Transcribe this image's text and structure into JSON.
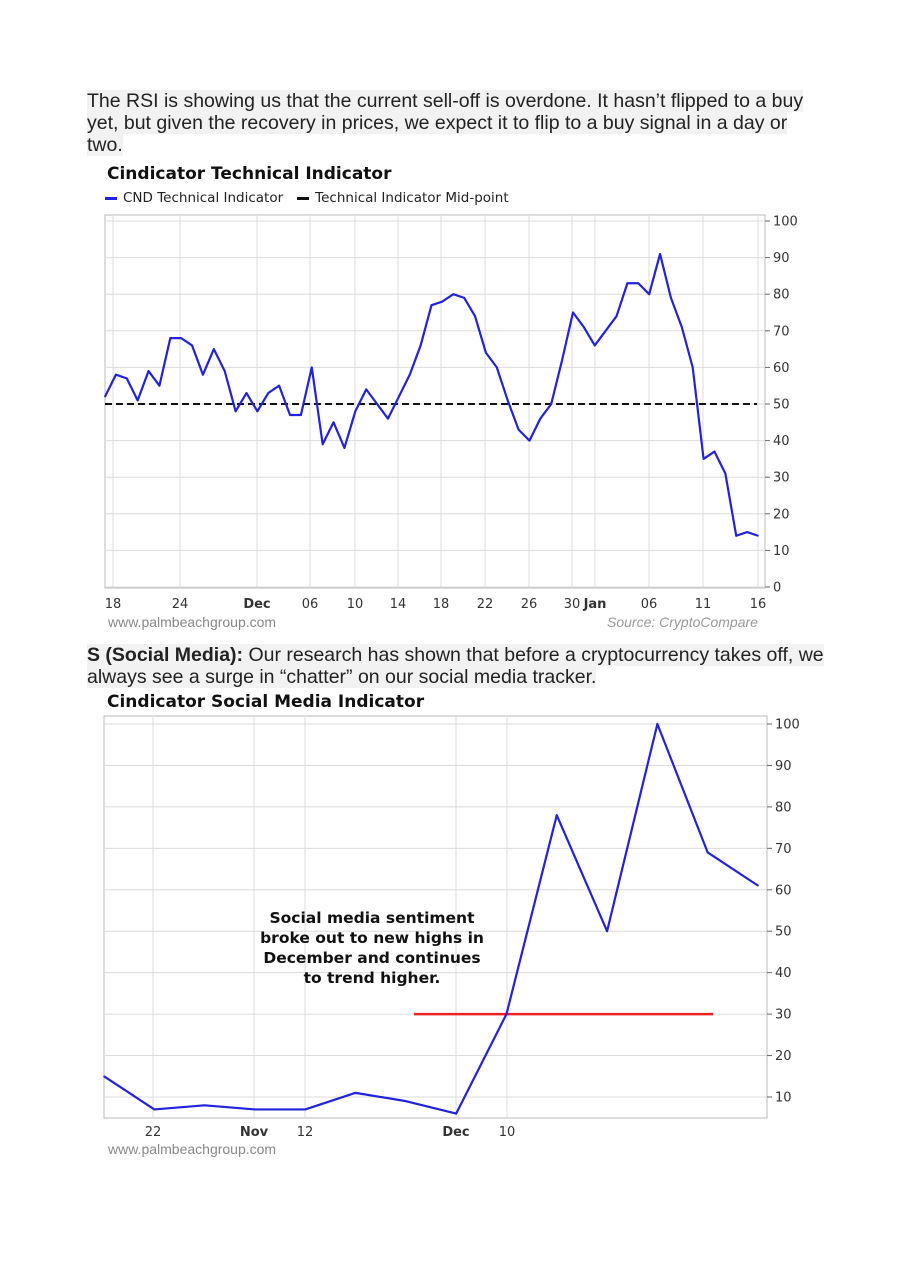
{
  "paragraph1": {
    "text": "The RSI is showing us that the current sell-off is overdone. It hasn’t flipped to a buy yet, but given the recovery in prices, we expect it to flip to a buy signal in a day or two."
  },
  "paragraph2": {
    "bold": "S (Social Media):",
    "text": " Our research has shown that before a cryptocurrency takes off, we always see a surge in “chatter” on our social media tracker."
  },
  "chart_data": [
    {
      "type": "line",
      "title": "Cindicator Technical Indicator",
      "series": [
        {
          "name": "CND Technical Indicator",
          "color": "#2222dd",
          "values": [
            52,
            58,
            57,
            51,
            59,
            55,
            68,
            68,
            66,
            58,
            65,
            59,
            48,
            53,
            48,
            53,
            55,
            47,
            47,
            60,
            39,
            45,
            38,
            48,
            54,
            50,
            46,
            52,
            58,
            66,
            77,
            78,
            80,
            79,
            74,
            64,
            60,
            51,
            43,
            40,
            46,
            50,
            62,
            75,
            71,
            66,
            70,
            74,
            83,
            83,
            80,
            91,
            79,
            71,
            60,
            35,
            37,
            31,
            14,
            15,
            14
          ]
        },
        {
          "name": "Technical Indicator Mid-point",
          "color": "#111111",
          "value": 50
        }
      ],
      "x_ticks": [
        {
          "label": "18",
          "bold": false
        },
        {
          "label": "24",
          "bold": false
        },
        {
          "label": "Dec",
          "bold": true
        },
        {
          "label": "06",
          "bold": false
        },
        {
          "label": "10",
          "bold": false
        },
        {
          "label": "14",
          "bold": false
        },
        {
          "label": "18",
          "bold": false
        },
        {
          "label": "22",
          "bold": false
        },
        {
          "label": "26",
          "bold": false
        },
        {
          "label": "30",
          "bold": false
        },
        {
          "label": "Jan",
          "bold": true
        },
        {
          "label": "06",
          "bold": false
        },
        {
          "label": "11",
          "bold": false
        },
        {
          "label": "16",
          "bold": false
        }
      ],
      "y_ticks": [
        0,
        10,
        20,
        30,
        40,
        50,
        60,
        70,
        80,
        90,
        100
      ],
      "ylim": [
        0,
        100
      ],
      "y_axis_side": "right",
      "grid": true,
      "legend": "top-left",
      "credit": "www.palmbeachgroup.com",
      "source": "Source: CryptoCompare"
    },
    {
      "type": "line",
      "title": "Cindicator Social Media Indicator",
      "series": [
        {
          "color": "#2222dd",
          "values": [
            15,
            7,
            8,
            7,
            7,
            11,
            9,
            6,
            30,
            78,
            50,
            100,
            69,
            61
          ]
        }
      ],
      "reference_line": {
        "value": 30,
        "color": "#ee2222"
      },
      "x_ticks": [
        {
          "label": "22",
          "bold": false
        },
        {
          "label": "Nov",
          "bold": true
        },
        {
          "label": "12",
          "bold": false
        },
        {
          "label": "Dec",
          "bold": true
        },
        {
          "label": "10",
          "bold": false
        }
      ],
      "y_ticks": [
        10,
        20,
        30,
        40,
        50,
        60,
        70,
        80,
        90,
        100
      ],
      "ylim": [
        5,
        102
      ],
      "y_axis_side": "right",
      "grid": true,
      "annotation": "Social media sentiment broke out to new highs in December and continues to trend higher.",
      "credit": "www.palmbeachgroup.com"
    }
  ]
}
